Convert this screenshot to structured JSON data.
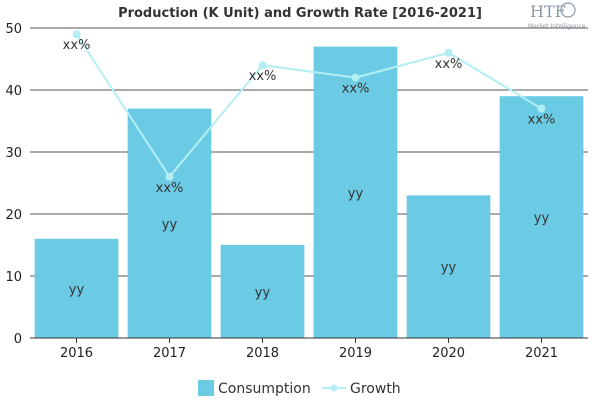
{
  "chart_data": {
    "type": "bar",
    "title": "Production (K Unit) and Growth Rate [2016-2021]",
    "categories": [
      "2016",
      "2017",
      "2018",
      "2019",
      "2020",
      "2021"
    ],
    "ylim": [
      0,
      50
    ],
    "yticks": [
      0,
      10,
      20,
      30,
      40,
      50
    ],
    "grid": true,
    "legend_position": "bottom",
    "series": [
      {
        "name": "Consumption",
        "type": "bar",
        "color": "#6ccbe4",
        "values": [
          16,
          37,
          15,
          47,
          23,
          39
        ],
        "data_labels": [
          "yy",
          "yy",
          "yy",
          "yy",
          "yy",
          "yy"
        ]
      },
      {
        "name": "Growth",
        "type": "line",
        "color": "#b2eff5",
        "values": [
          49,
          26,
          44,
          42,
          46,
          37
        ],
        "data_labels": [
          "xx%",
          "xx%",
          "xx%",
          "xx%",
          "xx%",
          "xx%"
        ]
      }
    ]
  },
  "logo": {
    "text": "HTF",
    "subtext": "Market Intelligence",
    "color": "#8a9aa8"
  }
}
